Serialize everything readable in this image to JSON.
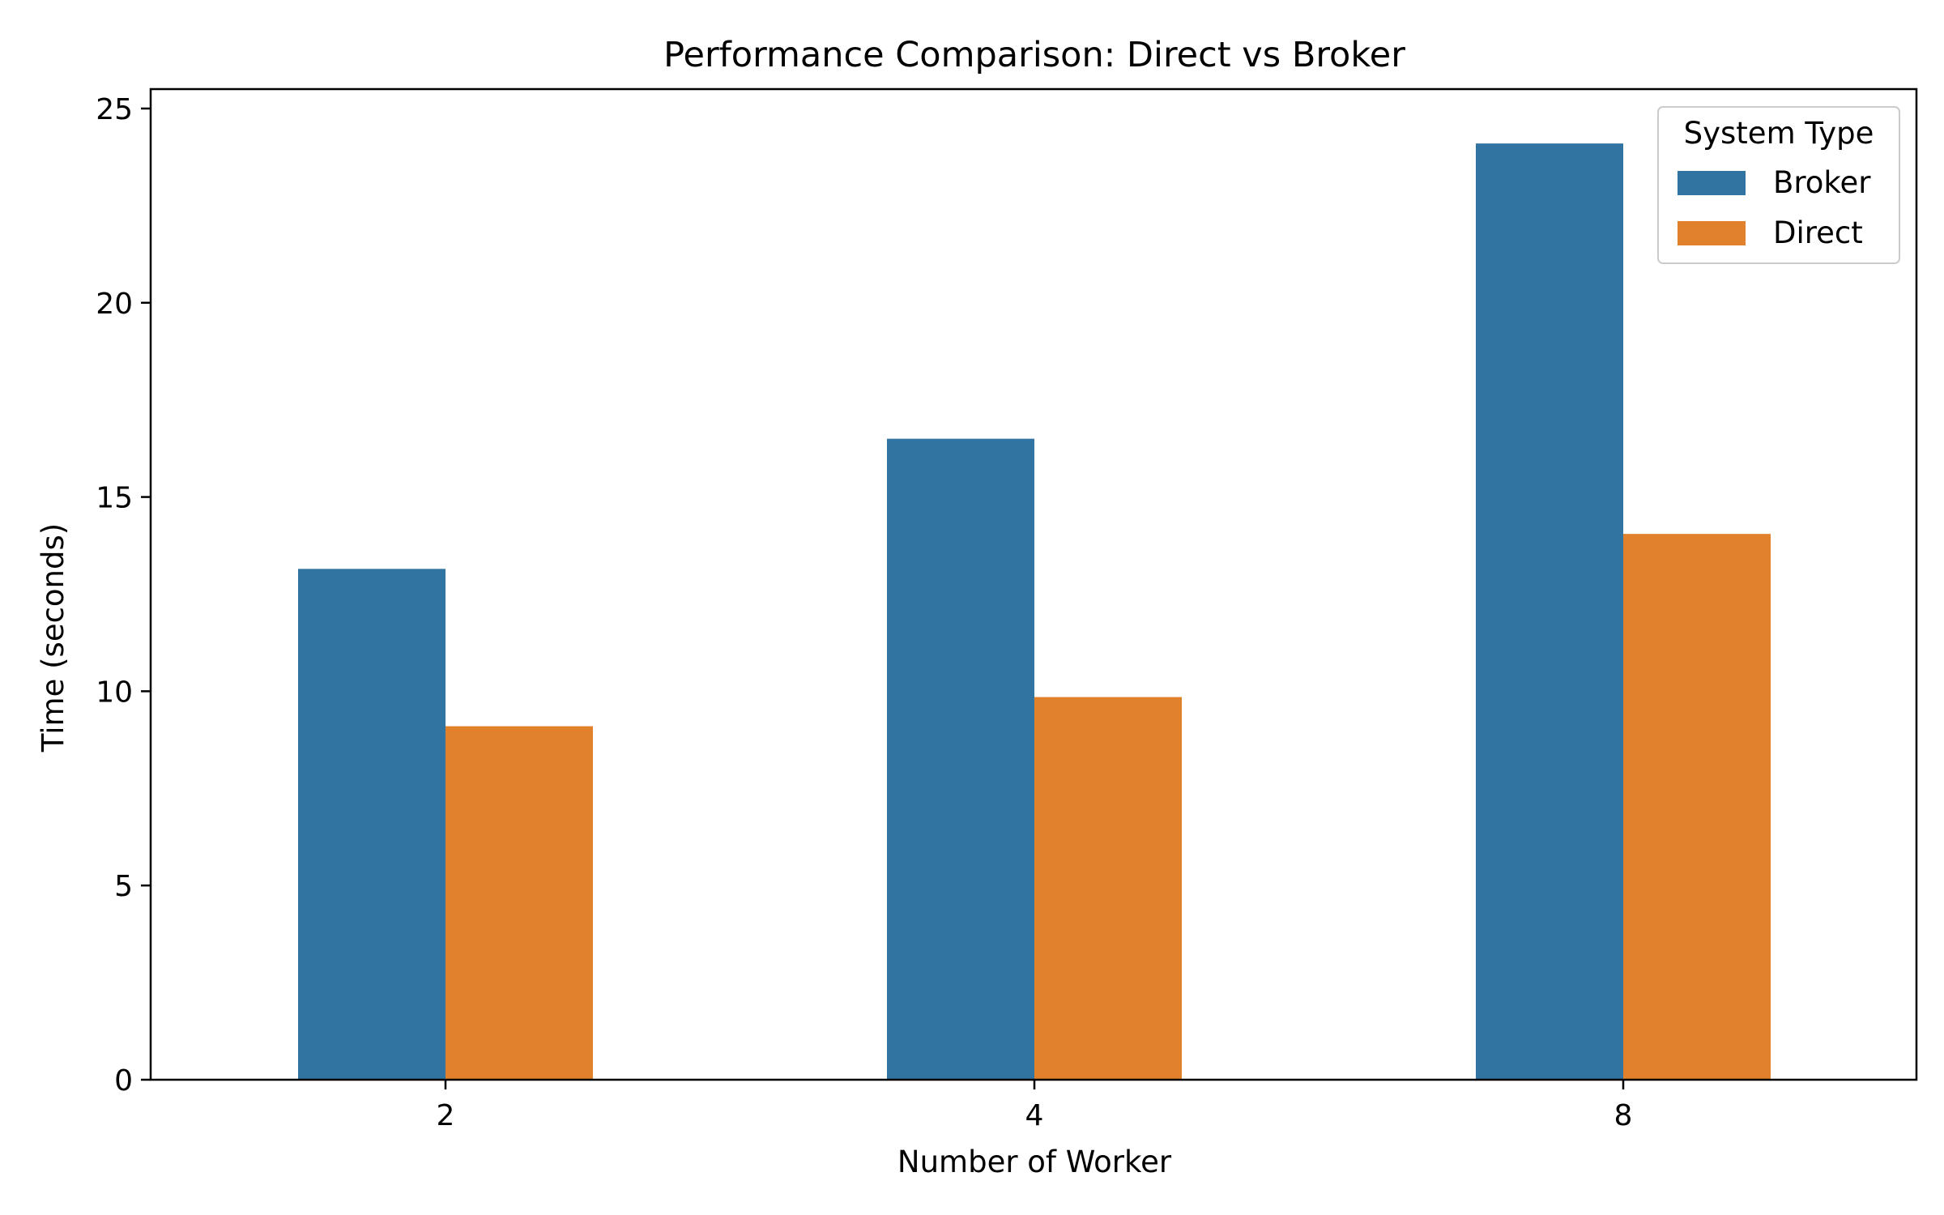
{
  "chart_data": {
    "type": "bar",
    "title": "Performance Comparison: Direct vs Broker",
    "xlabel": "Number of Worker",
    "ylabel": "Time (seconds)",
    "categories": [
      "2",
      "4",
      "8"
    ],
    "series": [
      {
        "name": "Broker",
        "color": "#3274a1",
        "values": [
          13.15,
          16.5,
          24.1
        ]
      },
      {
        "name": "Direct",
        "color": "#e1812c",
        "values": [
          9.1,
          9.85,
          14.05
        ]
      }
    ],
    "ylim": [
      0,
      25.5
    ],
    "yticks": [
      0,
      5,
      10,
      15,
      20,
      25
    ],
    "grid": false,
    "legend": {
      "title": "System Type",
      "placement": "top-right"
    }
  }
}
